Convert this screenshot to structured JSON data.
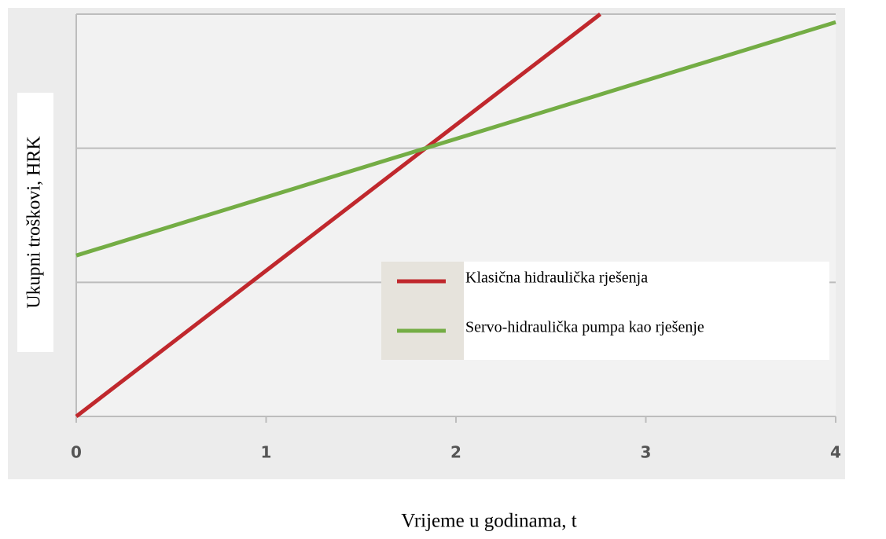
{
  "chart_data": {
    "type": "line",
    "x_label": "Vrijeme u godinama, t",
    "y_label": "Ukupni troškovi,  HRK",
    "xlim": [
      0,
      4
    ],
    "xticks": [
      0,
      1,
      2,
      3,
      4
    ],
    "ylim": [
      0,
      3
    ],
    "yticks": [
      0,
      1,
      2,
      3
    ],
    "grid": true,
    "legend": "lower right",
    "series": [
      {
        "name": "Klasična hidraulička rješenja",
        "color": "#c0282d",
        "x": [
          0,
          2.76
        ],
        "values": [
          0,
          3
        ]
      },
      {
        "name": "Servo-hidraulička pumpa kao rješenje",
        "color": "#74ad45",
        "x": [
          0,
          4
        ],
        "values": [
          1.2,
          2.94
        ]
      }
    ]
  }
}
